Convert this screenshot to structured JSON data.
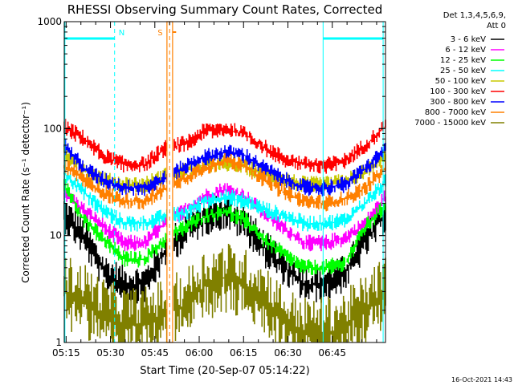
{
  "chart_data": {
    "type": "line",
    "title": "RHESSI Observing Summary Count Rates, Corrected",
    "xlabel": "Start Time (20-Sep-07 05:14:22)",
    "ylabel": "Corrected Count Rate (s⁻¹ detector⁻¹)",
    "yscale": "log",
    "ylim": [
      1,
      1000
    ],
    "y_ticks": [
      1,
      10,
      100,
      1000
    ],
    "y_tick_labels": [
      "1",
      "10",
      "100",
      "1000"
    ],
    "x_range_minutes": [
      314.37,
      423.0
    ],
    "x_ticks": [
      315,
      330,
      345,
      360,
      375,
      390,
      405
    ],
    "x_tick_labels": [
      "05:15",
      "05:30",
      "05:45",
      "06:00",
      "06:15",
      "06:30",
      "06:45"
    ],
    "legend": {
      "position": "right",
      "header_lines": [
        "Det 1,3,4,5,6,9,",
        "Att 0"
      ]
    },
    "timestamp": "16-Oct-2021 14:43",
    "markers": [
      {
        "label": "N",
        "color": "#00ffff",
        "x": 331.4
      },
      {
        "label": "S",
        "color": "#ff8000",
        "x": 350.0
      }
    ],
    "series": [
      {
        "name": "3 - 6 keV",
        "color": "#000000",
        "shape": [
          16,
          9.5,
          4.5,
          3.5,
          3.5,
          7,
          11,
          15,
          17,
          13,
          7.5,
          5,
          3.5,
          3.5,
          4.5,
          9,
          16
        ]
      },
      {
        "name": "6 - 12 keV",
        "color": "#ff00ff",
        "shape": [
          25,
          17,
          12,
          8.5,
          8.5,
          13,
          17,
          23,
          27,
          23,
          16,
          11.5,
          8.5,
          8.5,
          9.5,
          13,
          23
        ]
      },
      {
        "name": "12 - 25 keV",
        "color": "#00ff00",
        "shape": [
          30,
          14,
          9,
          6,
          6,
          9,
          12,
          15,
          17,
          14,
          9,
          6.5,
          5,
          5,
          5.5,
          12,
          19
        ]
      },
      {
        "name": "25 - 50 keV",
        "color": "#00ffff",
        "shape": [
          38,
          25,
          17,
          13,
          13,
          15,
          16,
          21,
          23,
          21,
          17.5,
          15,
          13,
          13,
          14,
          20,
          32
        ]
      },
      {
        "name": "50 - 100 keV",
        "color": "#c8c800",
        "shape": [
          60,
          42,
          33,
          30,
          30,
          36,
          40,
          46,
          48,
          44,
          38,
          33,
          30,
          30,
          32,
          40,
          55
        ]
      },
      {
        "name": "100 - 300 keV",
        "color": "#ff0000",
        "shape": [
          105,
          80,
          55,
          46,
          46,
          65,
          72,
          95,
          100,
          88,
          66,
          52,
          46,
          45,
          50,
          70,
          105
        ]
      },
      {
        "name": "300 - 800 keV",
        "color": "#0000ff",
        "shape": [
          70,
          42,
          33,
          28,
          28,
          34,
          44,
          54,
          60,
          56,
          42,
          33,
          28,
          28,
          30,
          42,
          64
        ]
      },
      {
        "name": "800 - 7000 keV",
        "color": "#ff8000",
        "shape": [
          45,
          33,
          25,
          21,
          21,
          27,
          34,
          43,
          50,
          45,
          33,
          25,
          21,
          20,
          22,
          28,
          42
        ]
      },
      {
        "name": "7000 - 15000 keV",
        "color": "#808000",
        "shape": [
          3,
          2.5,
          1.8,
          1.5,
          1.5,
          1.8,
          2.2,
          3.4,
          4,
          3.4,
          2.6,
          1.5,
          1.2,
          1.2,
          1.4,
          2,
          3
        ]
      }
    ]
  }
}
